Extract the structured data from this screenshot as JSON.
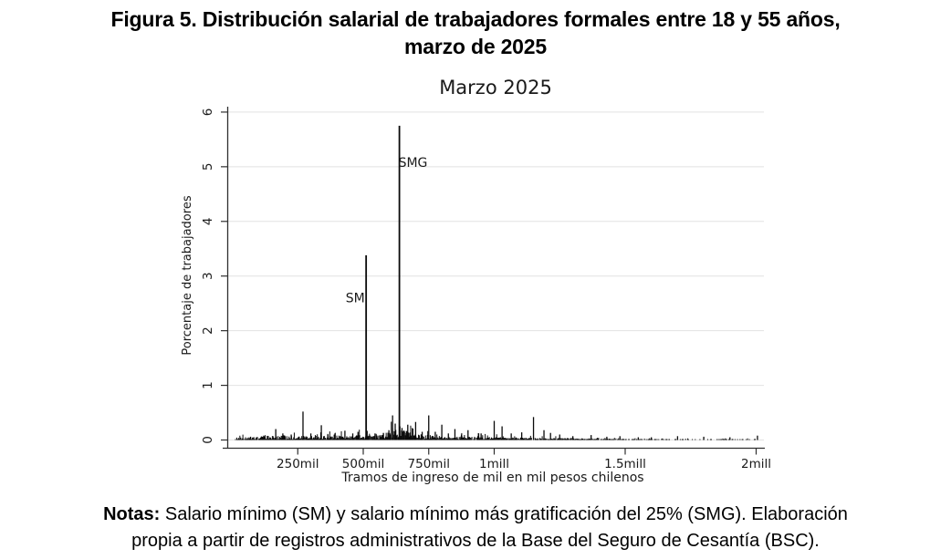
{
  "figure": {
    "title_line1": "Figura 5. Distribución salarial de trabajadores formales entre 18 y 55 años,",
    "title_line2": "marzo de 2025"
  },
  "notes": {
    "label": "Notas:",
    "line1": " Salario mínimo (SM) y salario mínimo más gratificación del 25% (SMG). Elaboración",
    "line2": "propia a partir de registros administrativos de la Base del Seguro de Cesantía (BSC)."
  },
  "chart_data": {
    "type": "bar",
    "title": "Marzo 2025",
    "xlabel": "Tramos de ingreso de mil en mil pesos chilenos",
    "ylabel": "Porcentaje de trabajadores",
    "x_unit": "miles de pesos chilenos (mil = 1.000 CLP)",
    "y_unit": "% de trabajadores",
    "bin_width_mil": 1,
    "xlim_mil": [
      -20,
      2030
    ],
    "ylim": [
      0,
      6
    ],
    "grid": "horizontal-light-gray",
    "legend": "none",
    "yticks": [
      0,
      1,
      2,
      3,
      4,
      5,
      6
    ],
    "xticks": [
      {
        "value_mil": 250,
        "label": "250mil"
      },
      {
        "value_mil": 500,
        "label": "500mil"
      },
      {
        "value_mil": 750,
        "label": "750mil"
      },
      {
        "value_mil": 1000,
        "label": "1mill"
      },
      {
        "value_mil": 1500,
        "label": "1.5mill"
      },
      {
        "value_mil": 2000,
        "label": "2mill"
      }
    ],
    "annotations": [
      {
        "label": "SM",
        "value_mil": 511,
        "pct": 3.38,
        "label_pct": 2.6,
        "side": "left"
      },
      {
        "label": "SMG",
        "value_mil": 638,
        "pct": 5.75,
        "label_pct": 5.08,
        "side": "right"
      }
    ],
    "spikes_mil_pct": [
      [
        70,
        0.06
      ],
      [
        120,
        0.08
      ],
      [
        166,
        0.2
      ],
      [
        193,
        0.12
      ],
      [
        225,
        0.1
      ],
      [
        270,
        0.52
      ],
      [
        300,
        0.12
      ],
      [
        340,
        0.27
      ],
      [
        365,
        0.1
      ],
      [
        392,
        0.12
      ],
      [
        430,
        0.17
      ],
      [
        460,
        0.12
      ],
      [
        480,
        0.15
      ],
      [
        545,
        0.12
      ],
      [
        577,
        0.13
      ],
      [
        598,
        0.18
      ],
      [
        612,
        0.45
      ],
      [
        622,
        0.3
      ],
      [
        648,
        0.22
      ],
      [
        670,
        0.28
      ],
      [
        700,
        0.33
      ],
      [
        725,
        0.15
      ],
      [
        750,
        0.45
      ],
      [
        775,
        0.15
      ],
      [
        800,
        0.28
      ],
      [
        825,
        0.12
      ],
      [
        850,
        0.2
      ],
      [
        875,
        0.1
      ],
      [
        900,
        0.18
      ],
      [
        950,
        0.12
      ],
      [
        1000,
        0.35
      ],
      [
        1030,
        0.25
      ],
      [
        1065,
        0.12
      ],
      [
        1105,
        0.14
      ],
      [
        1150,
        0.42
      ],
      [
        1190,
        0.18
      ],
      [
        1215,
        0.13
      ],
      [
        1250,
        0.1
      ],
      [
        1300,
        0.07
      ],
      [
        1370,
        0.09
      ],
      [
        1430,
        0.06
      ],
      [
        1480,
        0.07
      ],
      [
        1550,
        0.05
      ],
      [
        1600,
        0.05
      ],
      [
        1700,
        0.07
      ],
      [
        1800,
        0.06
      ],
      [
        1900,
        0.05
      ],
      [
        2005,
        0.08
      ]
    ],
    "noise_profile_mil_amp": [
      [
        12,
        0.035
      ],
      [
        100,
        0.05
      ],
      [
        160,
        0.07
      ],
      [
        250,
        0.06
      ],
      [
        300,
        0.06
      ],
      [
        400,
        0.07
      ],
      [
        500,
        0.08
      ],
      [
        560,
        0.07
      ],
      [
        600,
        0.13
      ],
      [
        615,
        0.16
      ],
      [
        660,
        0.15
      ],
      [
        700,
        0.09
      ],
      [
        760,
        0.07
      ],
      [
        850,
        0.055
      ],
      [
        950,
        0.05
      ],
      [
        1050,
        0.04
      ],
      [
        1200,
        0.03
      ],
      [
        1400,
        0.022
      ],
      [
        1550,
        0.015
      ],
      [
        1800,
        0.012
      ],
      [
        2010,
        0.012
      ]
    ]
  },
  "colors": {
    "bar": "#0a0a0a",
    "axis": "#2f2f2f",
    "grid": "#e2e2e2",
    "text": "#1a1a1a",
    "background": "#ffffff"
  }
}
